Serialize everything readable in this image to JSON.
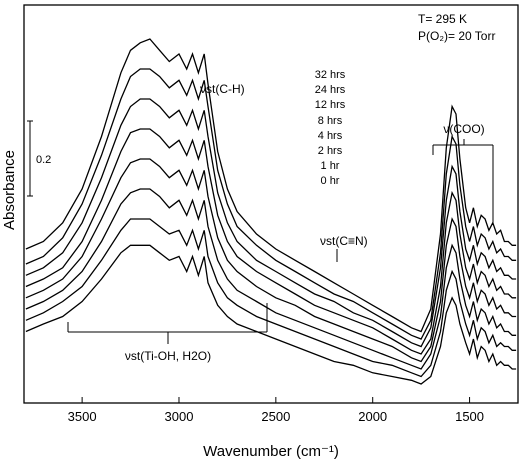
{
  "chart_data": {
    "type": "line",
    "xlabel": "Wavenumber (cm⁻¹)",
    "ylabel": "Absorbance",
    "xlim": [
      3800,
      1250
    ],
    "x_reversed": true,
    "x_ticks": [
      3500,
      3000,
      2500,
      2000,
      1500
    ],
    "x_tick_labels": [
      "3500",
      "3000",
      "2500",
      "2000",
      "1500"
    ],
    "y_units": "relative absorbance (stacked spectra)",
    "scale_bar": {
      "label": "0.2",
      "value": 0.2
    },
    "conditions": [
      "T= 295 K",
      "P(O₂)= 20 Torr"
    ],
    "time_labels": [
      "32 hrs",
      "24 hrs",
      "12 hrs",
      "8 hrs",
      "4 hrs",
      "2 hrs",
      "1 hr",
      "0 hr"
    ],
    "annotations": {
      "ch": "νst(C-H)",
      "cn": "νst(C≡N)",
      "coo": "ν(COO)",
      "tioh": "νst(Ti-OH, H2O)"
    },
    "series_x": [
      3790,
      3700,
      3600,
      3500,
      3400,
      3300,
      3250,
      3200,
      3150,
      3100,
      3050,
      3000,
      2960,
      2930,
      2900,
      2870,
      2850,
      2800,
      2750,
      2700,
      2600,
      2500,
      2400,
      2300,
      2200,
      2100,
      2000,
      1900,
      1800,
      1750,
      1700,
      1650,
      1620,
      1590,
      1570,
      1550,
      1520,
      1500,
      1480,
      1460,
      1440,
      1420,
      1400,
      1380,
      1360,
      1340,
      1320,
      1300,
      1280,
      1260
    ],
    "series": [
      {
        "name": "32 hrs",
        "y": [
          0.36,
          0.38,
          0.43,
          0.52,
          0.66,
          0.83,
          0.89,
          0.91,
          0.92,
          0.89,
          0.86,
          0.88,
          0.84,
          0.88,
          0.83,
          0.88,
          0.8,
          0.62,
          0.52,
          0.46,
          0.4,
          0.36,
          0.33,
          0.3,
          0.27,
          0.24,
          0.21,
          0.18,
          0.15,
          0.14,
          0.2,
          0.4,
          0.63,
          0.74,
          0.72,
          0.6,
          0.47,
          0.43,
          0.47,
          0.42,
          0.45,
          0.44,
          0.41,
          0.43,
          0.4,
          0.41,
          0.38,
          0.38,
          0.37,
          0.37
        ]
      },
      {
        "name": "24 hrs",
        "y": [
          0.32,
          0.34,
          0.39,
          0.48,
          0.61,
          0.76,
          0.82,
          0.84,
          0.84,
          0.82,
          0.79,
          0.81,
          0.77,
          0.81,
          0.76,
          0.81,
          0.74,
          0.57,
          0.48,
          0.42,
          0.37,
          0.33,
          0.3,
          0.27,
          0.24,
          0.22,
          0.19,
          0.16,
          0.13,
          0.12,
          0.17,
          0.35,
          0.56,
          0.66,
          0.64,
          0.53,
          0.42,
          0.38,
          0.42,
          0.37,
          0.4,
          0.39,
          0.36,
          0.38,
          0.35,
          0.36,
          0.34,
          0.34,
          0.33,
          0.33
        ]
      },
      {
        "name": "12 hrs",
        "y": [
          0.29,
          0.31,
          0.35,
          0.43,
          0.55,
          0.69,
          0.74,
          0.76,
          0.76,
          0.74,
          0.71,
          0.73,
          0.69,
          0.73,
          0.68,
          0.73,
          0.66,
          0.51,
          0.43,
          0.38,
          0.33,
          0.3,
          0.27,
          0.24,
          0.22,
          0.19,
          0.17,
          0.14,
          0.11,
          0.1,
          0.15,
          0.31,
          0.49,
          0.58,
          0.56,
          0.46,
          0.36,
          0.33,
          0.37,
          0.32,
          0.35,
          0.34,
          0.31,
          0.33,
          0.3,
          0.31,
          0.29,
          0.29,
          0.28,
          0.28
        ]
      },
      {
        "name": "8 hrs",
        "y": [
          0.26,
          0.28,
          0.31,
          0.38,
          0.49,
          0.62,
          0.67,
          0.68,
          0.68,
          0.66,
          0.63,
          0.65,
          0.61,
          0.65,
          0.6,
          0.65,
          0.58,
          0.45,
          0.38,
          0.34,
          0.3,
          0.27,
          0.24,
          0.21,
          0.19,
          0.17,
          0.15,
          0.12,
          0.09,
          0.08,
          0.12,
          0.26,
          0.43,
          0.51,
          0.49,
          0.4,
          0.31,
          0.28,
          0.32,
          0.27,
          0.3,
          0.29,
          0.26,
          0.28,
          0.25,
          0.26,
          0.24,
          0.24,
          0.23,
          0.23
        ]
      },
      {
        "name": "4 hrs",
        "y": [
          0.23,
          0.25,
          0.28,
          0.34,
          0.44,
          0.55,
          0.59,
          0.6,
          0.6,
          0.58,
          0.55,
          0.57,
          0.53,
          0.57,
          0.52,
          0.57,
          0.5,
          0.39,
          0.33,
          0.3,
          0.26,
          0.23,
          0.21,
          0.18,
          0.16,
          0.14,
          0.12,
          0.1,
          0.07,
          0.06,
          0.1,
          0.22,
          0.37,
          0.44,
          0.42,
          0.34,
          0.26,
          0.23,
          0.27,
          0.22,
          0.25,
          0.24,
          0.21,
          0.23,
          0.2,
          0.21,
          0.19,
          0.19,
          0.18,
          0.18
        ]
      },
      {
        "name": "2 hrs",
        "y": [
          0.2,
          0.22,
          0.25,
          0.3,
          0.38,
          0.48,
          0.51,
          0.52,
          0.52,
          0.5,
          0.47,
          0.49,
          0.45,
          0.49,
          0.44,
          0.49,
          0.42,
          0.33,
          0.28,
          0.25,
          0.22,
          0.19,
          0.17,
          0.15,
          0.13,
          0.11,
          0.09,
          0.07,
          0.05,
          0.04,
          0.08,
          0.18,
          0.31,
          0.37,
          0.35,
          0.28,
          0.21,
          0.18,
          0.22,
          0.17,
          0.2,
          0.19,
          0.16,
          0.18,
          0.15,
          0.16,
          0.14,
          0.14,
          0.13,
          0.13
        ]
      },
      {
        "name": "1 hr",
        "y": [
          0.17,
          0.19,
          0.22,
          0.26,
          0.33,
          0.41,
          0.44,
          0.44,
          0.44,
          0.42,
          0.4,
          0.41,
          0.37,
          0.41,
          0.36,
          0.41,
          0.34,
          0.27,
          0.23,
          0.21,
          0.18,
          0.16,
          0.14,
          0.12,
          0.1,
          0.08,
          0.06,
          0.05,
          0.03,
          0.02,
          0.05,
          0.14,
          0.25,
          0.3,
          0.28,
          0.22,
          0.16,
          0.13,
          0.17,
          0.12,
          0.15,
          0.14,
          0.11,
          0.13,
          0.1,
          0.11,
          0.1,
          0.1,
          0.09,
          0.09
        ]
      },
      {
        "name": "0 hr",
        "y": [
          0.14,
          0.16,
          0.18,
          0.22,
          0.28,
          0.35,
          0.37,
          0.37,
          0.37,
          0.35,
          0.33,
          0.34,
          0.3,
          0.34,
          0.29,
          0.34,
          0.27,
          0.21,
          0.18,
          0.16,
          0.14,
          0.12,
          0.1,
          0.08,
          0.06,
          0.05,
          0.03,
          0.02,
          0.01,
          0.0,
          0.02,
          0.1,
          0.19,
          0.23,
          0.21,
          0.16,
          0.11,
          0.08,
          0.12,
          0.07,
          0.1,
          0.09,
          0.06,
          0.08,
          0.05,
          0.06,
          0.05,
          0.05,
          0.04,
          0.04
        ]
      }
    ]
  }
}
